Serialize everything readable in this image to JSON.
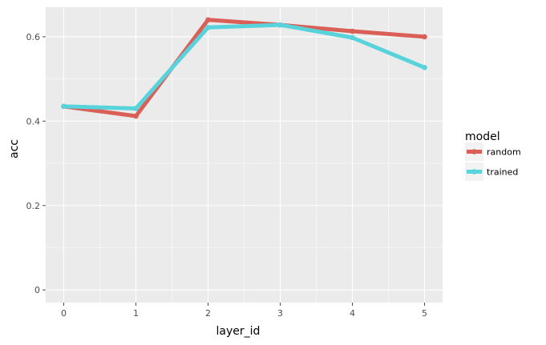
{
  "chart_data": {
    "type": "line",
    "title": "",
    "xlabel": "layer_id",
    "ylabel": "acc",
    "x": [
      0,
      1,
      2,
      3,
      4,
      5
    ],
    "x_ticks": [
      "0",
      "1",
      "2",
      "3",
      "4",
      "5"
    ],
    "y_ticks": [
      "0",
      "0.2",
      "0.4",
      "0.6"
    ],
    "xlim": [
      -0.25,
      5.25
    ],
    "ylim": [
      -0.03,
      0.67
    ],
    "grid": true,
    "legend": {
      "title": "model",
      "placement": "right"
    },
    "series": [
      {
        "name": "random",
        "color": "#d95f57",
        "values": [
          0.435,
          0.412,
          0.64,
          0.628,
          0.613,
          0.6
        ]
      },
      {
        "name": "trained",
        "color": "#58d3dc",
        "values": [
          0.435,
          0.43,
          0.622,
          0.628,
          0.598,
          0.527
        ]
      }
    ]
  },
  "colors": {
    "panel": "#ebebeb",
    "grid_major": "#ffffff",
    "tick": "#4d4d4d"
  }
}
